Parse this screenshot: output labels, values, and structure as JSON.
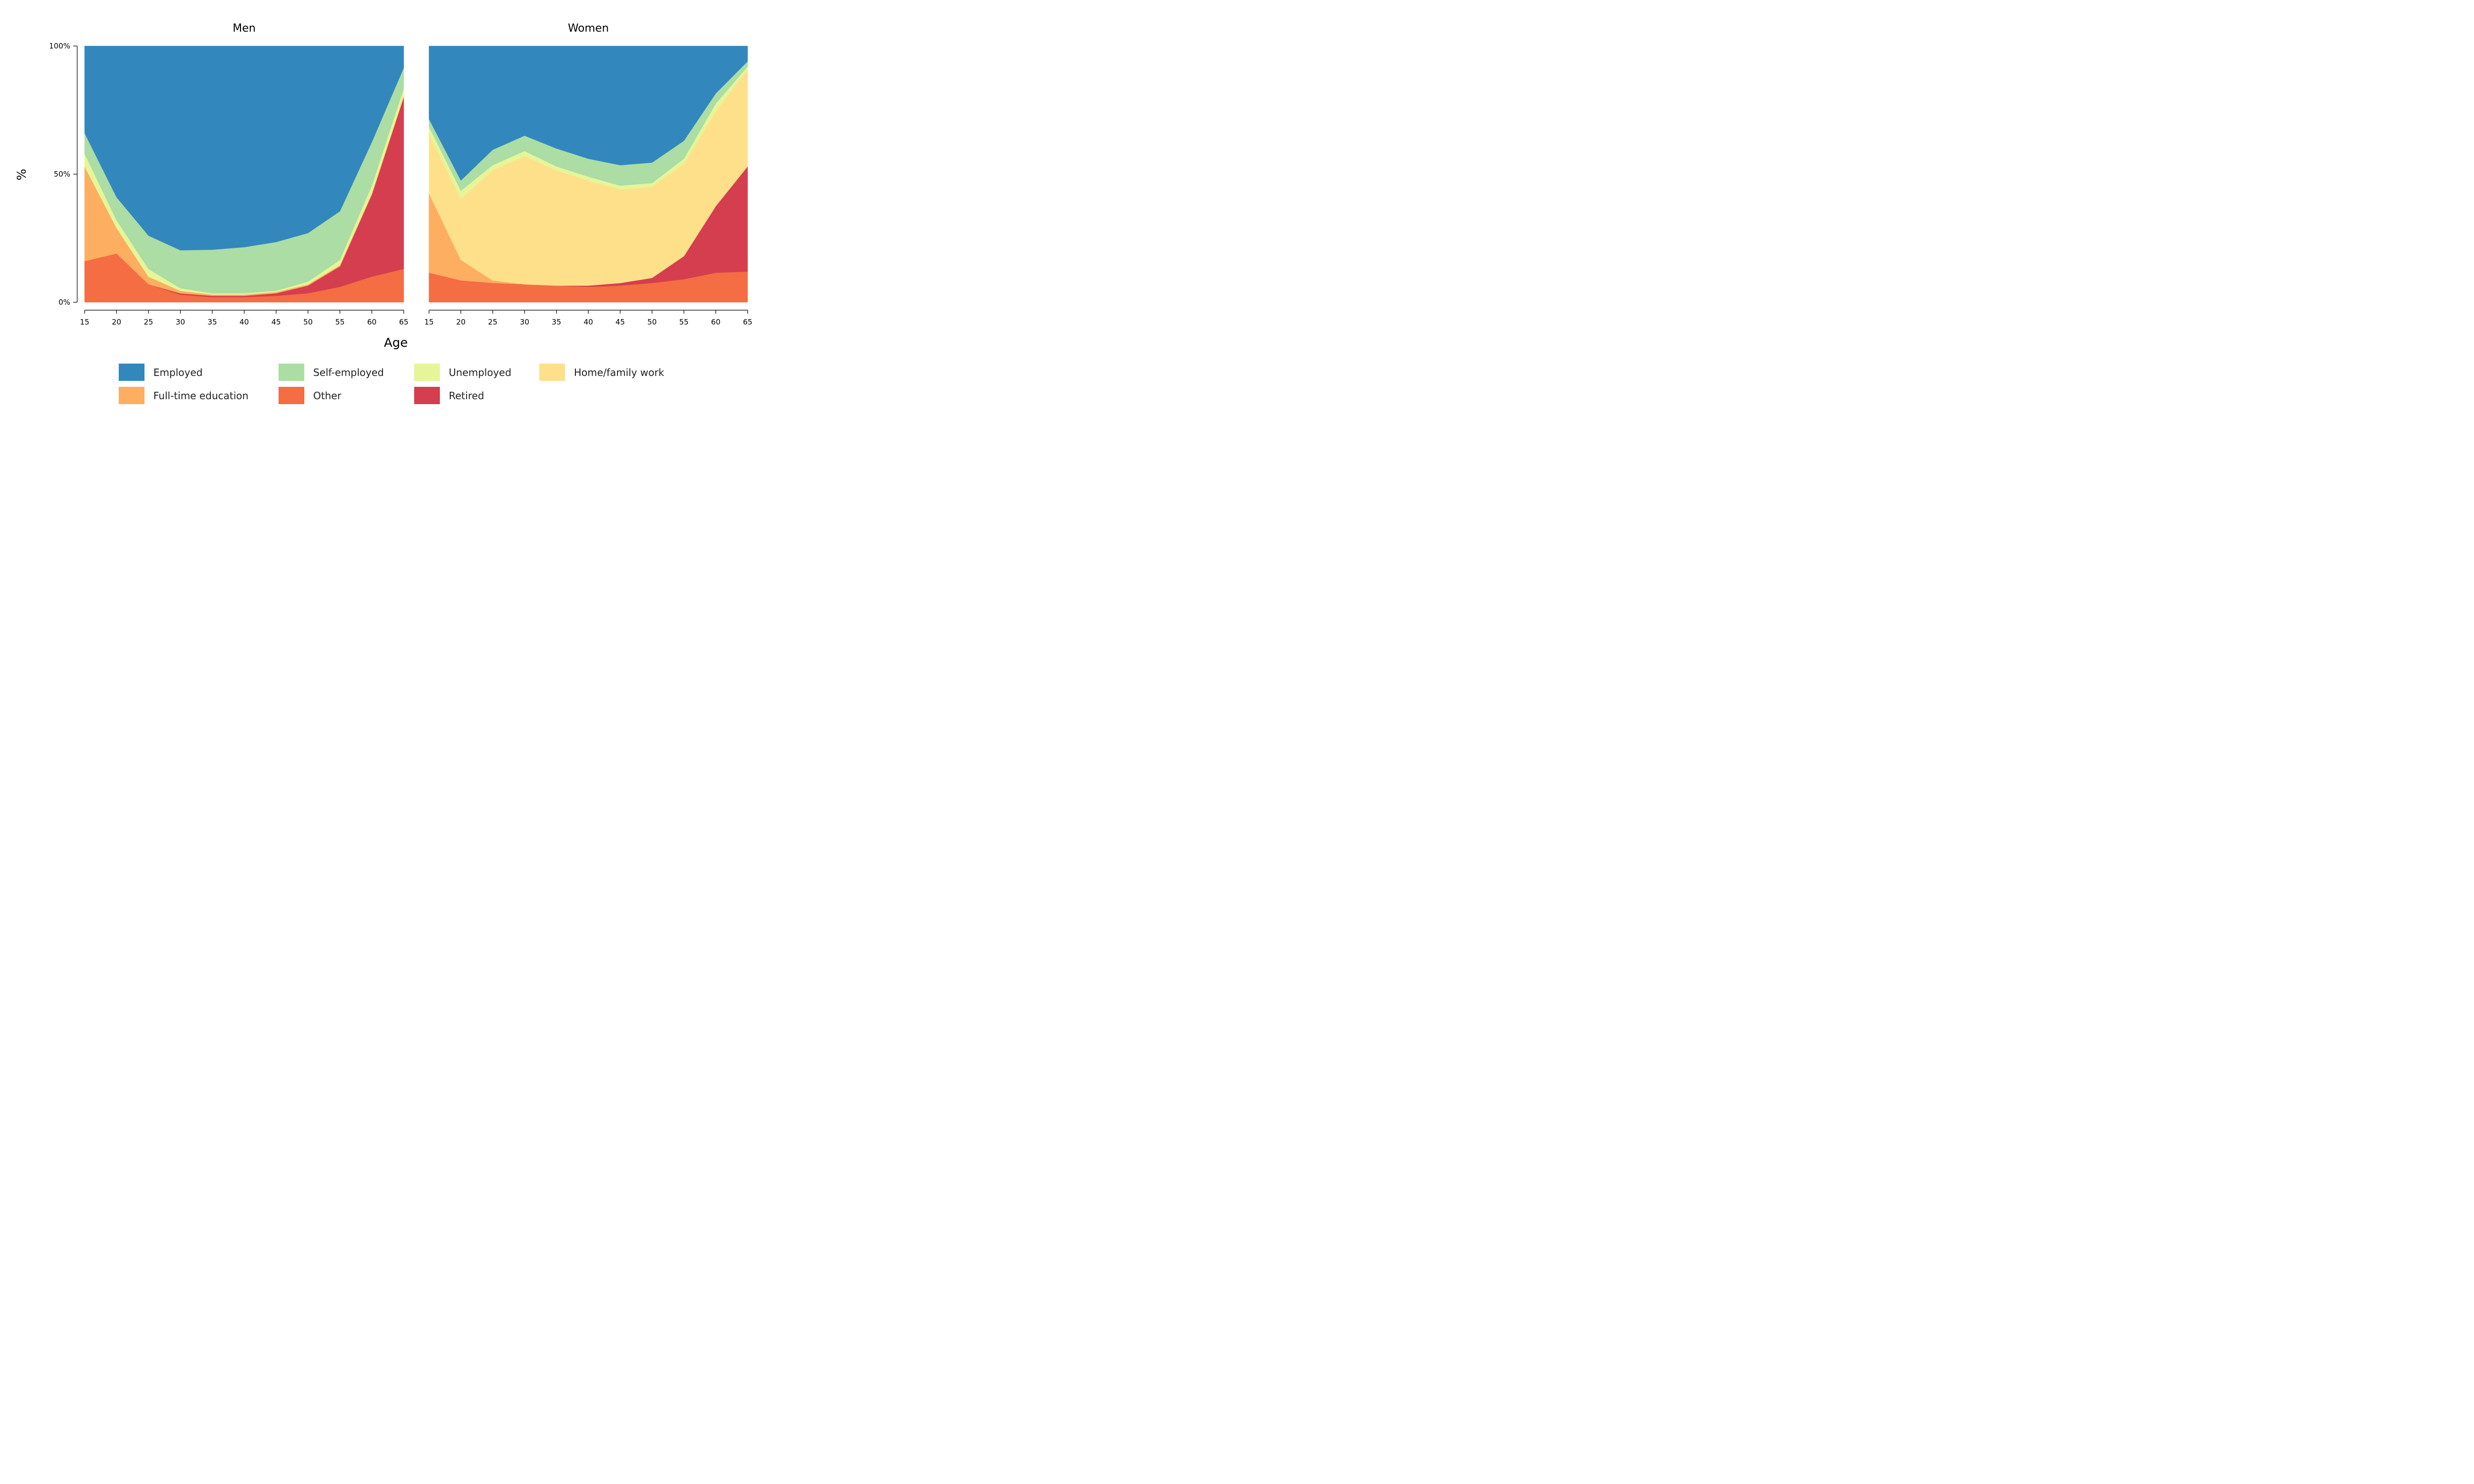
{
  "chart_data": {
    "type": "area",
    "stacked": true,
    "normalized": true,
    "xlabel": "Age",
    "ylabel": "%",
    "xlim": [
      15,
      65
    ],
    "ylim": [
      0,
      100
    ],
    "x_ticks": [
      "15",
      "20",
      "25",
      "30",
      "35",
      "40",
      "45",
      "50",
      "55",
      "60",
      "65"
    ],
    "y_ticks": [
      "0%",
      "50%",
      "100%"
    ],
    "x": [
      15,
      20,
      25,
      30,
      35,
      40,
      45,
      50,
      55,
      60,
      65
    ],
    "stack_order": [
      "Other",
      "Retired",
      "Full-time education",
      "Home/family work",
      "Unemployed",
      "Self-employed",
      "Employed"
    ],
    "colors": {
      "Employed": "#3288bd",
      "Self-employed": "#abdda4",
      "Unemployed": "#e6f598",
      "Home/family work": "#fee08b",
      "Full-time education": "#fdae61",
      "Other": "#f46d43",
      "Retired": "#d53e4f"
    },
    "legend": [
      {
        "name": "Employed",
        "label": "Employed"
      },
      {
        "name": "Self-employed",
        "label": "Self-employed"
      },
      {
        "name": "Unemployed",
        "label": "Unemployed"
      },
      {
        "name": "Home/family work",
        "label": "Home/family work"
      },
      {
        "name": "Full-time education",
        "label": "Full-time education"
      },
      {
        "name": "Other",
        "label": "Other"
      },
      {
        "name": "Retired",
        "label": "Retired"
      }
    ],
    "legend_placement": "bottom",
    "panels": [
      {
        "title": "Men",
        "series": [
          {
            "name": "Other",
            "values": [
              16,
              19,
              7,
              3,
              2,
              2,
              2.5,
              3.5,
              6,
              10,
              13
            ]
          },
          {
            "name": "Retired",
            "values": [
              0,
              0,
              0,
              0.5,
              0.5,
              0.5,
              1,
              3,
              8,
              32,
              67
            ]
          },
          {
            "name": "Full-time education",
            "values": [
              37,
              10,
              3,
              1,
              0.5,
              0.5,
              0.5,
              0.5,
              0.5,
              0.5,
              0.5
            ]
          },
          {
            "name": "Home/family work",
            "values": [
              0,
              0,
              0,
              0,
              0,
              0,
              0,
              0,
              0,
              0,
              0
            ]
          },
          {
            "name": "Unemployed",
            "values": [
              5,
              3,
              3,
              1,
              0.5,
              0.5,
              0.5,
              1,
              2,
              3,
              3
            ]
          },
          {
            "name": "Self-employed",
            "values": [
              8,
              9,
              13,
              15,
              17,
              18,
              19,
              19,
              19,
              17,
              8
            ]
          },
          {
            "name": "Employed",
            "values": [
              34,
              59,
              74,
              80.5,
              79.5,
              78.5,
              76.5,
              73,
              64.5,
              37.5,
              8.5
            ]
          }
        ]
      },
      {
        "title": "Women",
        "series": [
          {
            "name": "Other",
            "values": [
              11.5,
              8.5,
              7.5,
              7,
              6.5,
              6,
              6.5,
              7.5,
              9,
              11.5,
              12
            ]
          },
          {
            "name": "Retired",
            "values": [
              0,
              0,
              0,
              0,
              0,
              0.5,
              1,
              2,
              9,
              26,
              41
            ]
          },
          {
            "name": "Full-time education",
            "values": [
              31,
              8,
              1,
              0,
              0,
              0,
              0,
              0,
              0,
              0,
              0
            ]
          },
          {
            "name": "Home/family work",
            "values": [
              23,
              24,
              43,
              50,
              45,
              41,
              36.5,
              35.5,
              36,
              37,
              38
            ]
          },
          {
            "name": "Unemployed",
            "values": [
              3,
              3,
              2,
              2,
              1.5,
              1.5,
              1.5,
              1.5,
              2,
              3,
              1
            ]
          },
          {
            "name": "Self-employed",
            "values": [
              3,
              4,
              6,
              6,
              7,
              7,
              8,
              8,
              7,
              4,
              2
            ]
          },
          {
            "name": "Employed",
            "values": [
              28.5,
              52.5,
              40.5,
              35,
              40,
              44,
              46.5,
              45.5,
              37,
              18.5,
              6
            ]
          }
        ]
      }
    ]
  }
}
